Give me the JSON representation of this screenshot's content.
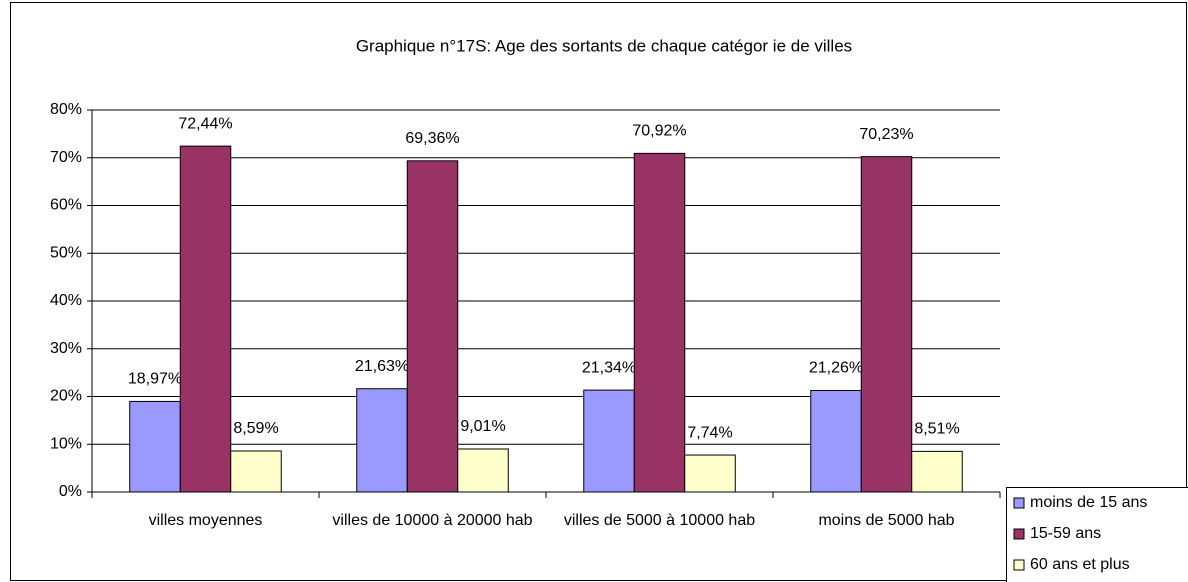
{
  "chart_data": {
    "type": "bar",
    "title": "Graphique n°17S: Age des sortants de chaque catégor ie de villes",
    "categories": [
      "villes moyennes",
      "villes de 10000 à 20000 hab",
      "villes de 5000 à 10000 hab",
      "moins de 5000 hab"
    ],
    "series": [
      {
        "name": "moins de 15 ans",
        "color": "#9999ff",
        "values": [
          18.97,
          21.63,
          21.34,
          21.26
        ],
        "value_labels": [
          "18,97%",
          "21,63%",
          "21,34%",
          "21,26%"
        ]
      },
      {
        "name": "15-59 ans",
        "color": "#993366",
        "values": [
          72.44,
          69.36,
          70.92,
          70.23
        ],
        "value_labels": [
          "72,44%",
          "69,36%",
          "70,92%",
          "70,23%"
        ]
      },
      {
        "name": "60 ans et plus",
        "color": "#ffffcc",
        "values": [
          8.59,
          9.01,
          7.74,
          8.51
        ],
        "value_labels": [
          "8,59%",
          "9,01%",
          "7,74%",
          "8,51%"
        ]
      }
    ],
    "ylim": [
      0,
      80
    ],
    "yticks": [
      {
        "value": 0,
        "label": "0%"
      },
      {
        "value": 10,
        "label": "10%"
      },
      {
        "value": 20,
        "label": "20%"
      },
      {
        "value": 30,
        "label": "30%"
      },
      {
        "value": 40,
        "label": "40%"
      },
      {
        "value": 50,
        "label": "50%"
      },
      {
        "value": 60,
        "label": "60%"
      },
      {
        "value": 70,
        "label": "70%"
      },
      {
        "value": 80,
        "label": "80%"
      }
    ],
    "grid": true,
    "legend": "bottom-right"
  }
}
